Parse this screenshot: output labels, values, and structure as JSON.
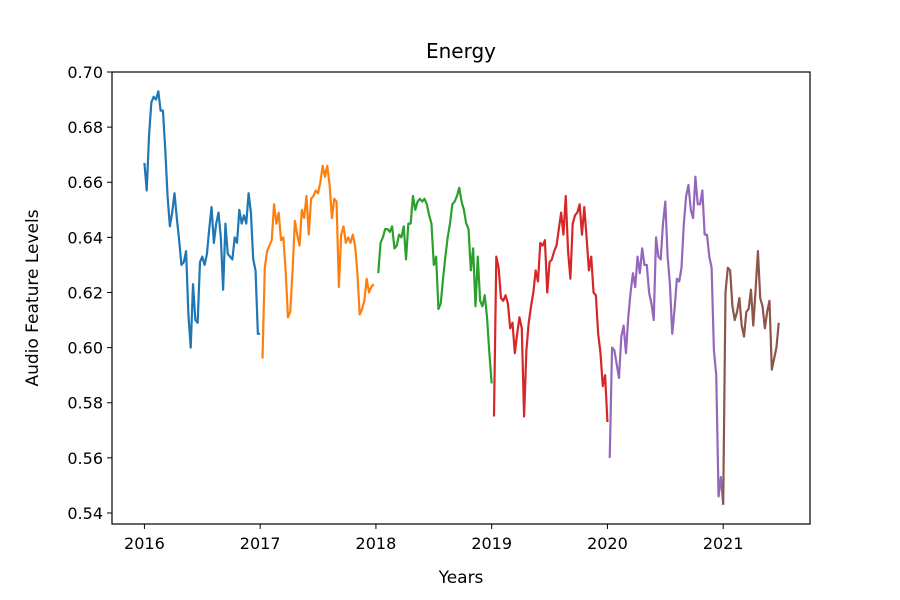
{
  "chart_data": {
    "type": "line",
    "title": "Energy",
    "xlabel": "Years",
    "ylabel": "Audio Feature Levels",
    "xlim": [
      2015.72,
      2021.75
    ],
    "ylim": [
      0.536,
      0.7
    ],
    "x_ticks": [
      2016,
      2017,
      2018,
      2019,
      2020,
      2021
    ],
    "y_ticks": [
      0.54,
      0.56,
      0.58,
      0.6,
      0.62,
      0.64,
      0.66,
      0.68,
      0.7
    ],
    "y_tick_labels": [
      "0.54",
      "0.56",
      "0.58",
      "0.60",
      "0.62",
      "0.64",
      "0.66",
      "0.68",
      "0.70"
    ],
    "grid": false,
    "legend": "none",
    "series": [
      {
        "color": "#1f77b4",
        "x": [
          2016.0,
          2016.02,
          2016.04,
          2016.06,
          2016.08,
          2016.1,
          2016.12,
          2016.14,
          2016.16,
          2016.18,
          2016.2,
          2016.22,
          2016.24,
          2016.26,
          2016.28,
          2016.3,
          2016.32,
          2016.34,
          2016.36,
          2016.38,
          2016.4,
          2016.42,
          2016.44,
          2016.46,
          2016.48,
          2016.5,
          2016.52,
          2016.54,
          2016.56,
          2016.58,
          2016.6,
          2016.62,
          2016.64,
          2016.66,
          2016.68,
          2016.7,
          2016.72,
          2016.74,
          2016.76,
          2016.78,
          2016.8,
          2016.82,
          2016.84,
          2016.86,
          2016.88,
          2016.9,
          2016.92,
          2016.94,
          2016.96,
          2016.98,
          2017.0
        ],
        "y": [
          0.667,
          0.657,
          0.677,
          0.689,
          0.691,
          0.69,
          0.693,
          0.686,
          0.686,
          0.672,
          0.655,
          0.644,
          0.649,
          0.656,
          0.647,
          0.639,
          0.63,
          0.631,
          0.635,
          0.612,
          0.6,
          0.623,
          0.61,
          0.609,
          0.631,
          0.633,
          0.63,
          0.634,
          0.643,
          0.651,
          0.638,
          0.645,
          0.649,
          0.64,
          0.621,
          0.645,
          0.634,
          0.633,
          0.632,
          0.64,
          0.638,
          0.65,
          0.645,
          0.648,
          0.645,
          0.656,
          0.649,
          0.632,
          0.628,
          0.605,
          0.605
        ]
      },
      {
        "color": "#ff7f0e",
        "x": [
          2017.02,
          2017.04,
          2017.06,
          2017.08,
          2017.1,
          2017.12,
          2017.14,
          2017.16,
          2017.18,
          2017.2,
          2017.22,
          2017.24,
          2017.26,
          2017.28,
          2017.3,
          2017.32,
          2017.34,
          2017.36,
          2017.38,
          2017.4,
          2017.42,
          2017.44,
          2017.46,
          2017.48,
          2017.5,
          2017.52,
          2017.54,
          2017.56,
          2017.58,
          2017.6,
          2017.62,
          2017.64,
          2017.66,
          2017.68,
          2017.7,
          2017.72,
          2017.74,
          2017.76,
          2017.78,
          2017.8,
          2017.82,
          2017.84,
          2017.86,
          2017.88,
          2017.9,
          2017.92,
          2017.94,
          2017.96,
          2017.98
        ],
        "y": [
          0.596,
          0.629,
          0.635,
          0.637,
          0.639,
          0.652,
          0.645,
          0.649,
          0.639,
          0.64,
          0.628,
          0.611,
          0.613,
          0.628,
          0.646,
          0.641,
          0.637,
          0.65,
          0.647,
          0.655,
          0.641,
          0.654,
          0.655,
          0.657,
          0.656,
          0.66,
          0.666,
          0.662,
          0.666,
          0.659,
          0.647,
          0.654,
          0.653,
          0.622,
          0.641,
          0.644,
          0.638,
          0.64,
          0.638,
          0.641,
          0.637,
          0.627,
          0.612,
          0.614,
          0.617,
          0.625,
          0.62,
          0.622,
          0.623
        ]
      },
      {
        "color": "#2ca02c",
        "x": [
          2018.02,
          2018.04,
          2018.06,
          2018.08,
          2018.1,
          2018.12,
          2018.14,
          2018.16,
          2018.18,
          2018.2,
          2018.22,
          2018.24,
          2018.26,
          2018.28,
          2018.3,
          2018.32,
          2018.34,
          2018.36,
          2018.38,
          2018.4,
          2018.42,
          2018.44,
          2018.46,
          2018.48,
          2018.5,
          2018.52,
          2018.54,
          2018.56,
          2018.58,
          2018.6,
          2018.62,
          2018.64,
          2018.66,
          2018.68,
          2018.7,
          2018.72,
          2018.74,
          2018.76,
          2018.78,
          2018.8,
          2018.82,
          2018.84,
          2018.86,
          2018.88,
          2018.9,
          2018.92,
          2018.94,
          2018.96,
          2018.98,
          2019.0
        ],
        "y": [
          0.627,
          0.638,
          0.64,
          0.643,
          0.643,
          0.642,
          0.644,
          0.636,
          0.637,
          0.641,
          0.64,
          0.644,
          0.632,
          0.645,
          0.645,
          0.655,
          0.65,
          0.653,
          0.654,
          0.653,
          0.654,
          0.652,
          0.648,
          0.645,
          0.63,
          0.633,
          0.614,
          0.616,
          0.625,
          0.633,
          0.64,
          0.645,
          0.652,
          0.653,
          0.655,
          0.658,
          0.653,
          0.65,
          0.645,
          0.643,
          0.628,
          0.636,
          0.615,
          0.633,
          0.617,
          0.615,
          0.619,
          0.611,
          0.598,
          0.587
        ]
      },
      {
        "color": "#d62728",
        "x": [
          2019.02,
          2019.04,
          2019.06,
          2019.08,
          2019.1,
          2019.12,
          2019.14,
          2019.16,
          2019.18,
          2019.2,
          2019.22,
          2019.24,
          2019.26,
          2019.28,
          2019.3,
          2019.32,
          2019.34,
          2019.36,
          2019.38,
          2019.4,
          2019.42,
          2019.44,
          2019.46,
          2019.48,
          2019.5,
          2019.52,
          2019.54,
          2019.56,
          2019.58,
          2019.6,
          2019.62,
          2019.64,
          2019.66,
          2019.68,
          2019.7,
          2019.72,
          2019.74,
          2019.76,
          2019.78,
          2019.8,
          2019.82,
          2019.84,
          2019.86,
          2019.88,
          2019.9,
          2019.92,
          2019.94,
          2019.96,
          2019.98,
          2020.0
        ],
        "y": [
          0.575,
          0.633,
          0.629,
          0.618,
          0.617,
          0.619,
          0.616,
          0.607,
          0.609,
          0.598,
          0.605,
          0.611,
          0.607,
          0.575,
          0.599,
          0.609,
          0.615,
          0.62,
          0.628,
          0.624,
          0.638,
          0.637,
          0.639,
          0.62,
          0.631,
          0.632,
          0.635,
          0.637,
          0.643,
          0.649,
          0.641,
          0.655,
          0.635,
          0.625,
          0.645,
          0.648,
          0.649,
          0.652,
          0.641,
          0.651,
          0.64,
          0.628,
          0.633,
          0.62,
          0.619,
          0.605,
          0.598,
          0.586,
          0.59,
          0.573
        ]
      },
      {
        "color": "#9467bd",
        "x": [
          2020.02,
          2020.04,
          2020.06,
          2020.08,
          2020.1,
          2020.12,
          2020.14,
          2020.16,
          2020.18,
          2020.2,
          2020.22,
          2020.24,
          2020.26,
          2020.28,
          2020.3,
          2020.32,
          2020.34,
          2020.36,
          2020.38,
          2020.4,
          2020.42,
          2020.44,
          2020.46,
          2020.48,
          2020.5,
          2020.52,
          2020.54,
          2020.56,
          2020.58,
          2020.6,
          2020.62,
          2020.64,
          2020.66,
          2020.68,
          2020.7,
          2020.72,
          2020.74,
          2020.76,
          2020.78,
          2020.8,
          2020.82,
          2020.84,
          2020.86,
          2020.88,
          2020.9,
          2020.92,
          2020.94,
          2020.96,
          2020.98,
          2021.0
        ],
        "y": [
          0.56,
          0.6,
          0.599,
          0.594,
          0.589,
          0.604,
          0.608,
          0.598,
          0.611,
          0.62,
          0.627,
          0.622,
          0.633,
          0.627,
          0.636,
          0.63,
          0.63,
          0.62,
          0.616,
          0.61,
          0.64,
          0.633,
          0.632,
          0.645,
          0.653,
          0.633,
          0.623,
          0.605,
          0.614,
          0.625,
          0.624,
          0.629,
          0.645,
          0.655,
          0.659,
          0.65,
          0.647,
          0.662,
          0.652,
          0.652,
          0.657,
          0.641,
          0.641,
          0.633,
          0.629,
          0.599,
          0.59,
          0.546,
          0.553,
          0.543
        ]
      },
      {
        "color": "#8c564b",
        "x": [
          2021.0,
          2021.02,
          2021.04,
          2021.06,
          2021.08,
          2021.1,
          2021.12,
          2021.14,
          2021.16,
          2021.18,
          2021.2,
          2021.22,
          2021.24,
          2021.26,
          2021.28,
          2021.3,
          2021.32,
          2021.34,
          2021.36,
          2021.38,
          2021.4,
          2021.42,
          2021.44,
          2021.46,
          2021.48
        ],
        "y": [
          0.543,
          0.62,
          0.629,
          0.628,
          0.615,
          0.61,
          0.613,
          0.618,
          0.608,
          0.604,
          0.613,
          0.614,
          0.621,
          0.608,
          0.621,
          0.635,
          0.618,
          0.615,
          0.607,
          0.613,
          0.617,
          0.592,
          0.596,
          0.6,
          0.609
        ]
      }
    ]
  }
}
